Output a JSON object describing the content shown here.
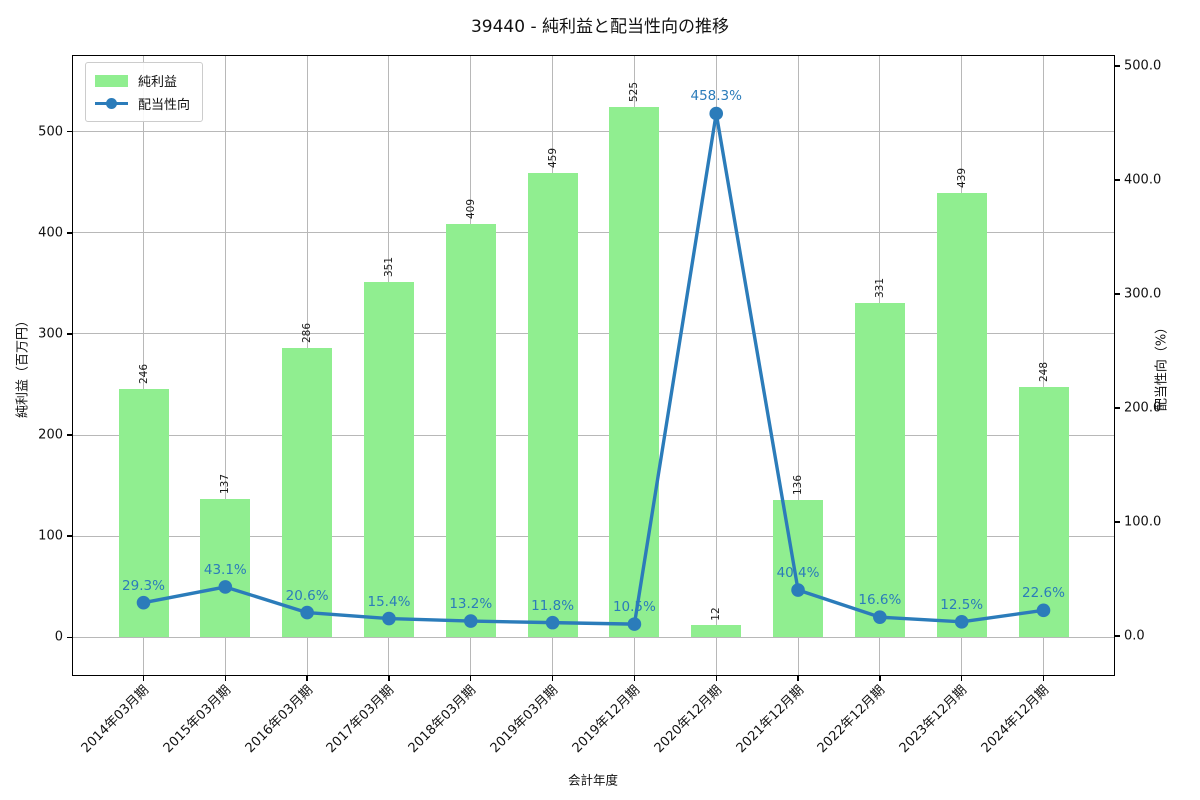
{
  "title": "39440 - 純利益と配当性向の推移",
  "legend": {
    "position": "upper left",
    "items": [
      {
        "label": "純利益",
        "swatch": "green-bar"
      },
      {
        "label": "配当性向",
        "swatch": "blue-line-marker"
      }
    ]
  },
  "axes": {
    "x_title": "会計年度",
    "y_left_title": "純利益（百万円）",
    "y_right_title": "配当性向（%）"
  },
  "colors": {
    "bar_fill": "#90ee90",
    "line": "#2b7cba",
    "point_label": "#2b7cba",
    "grid": "#b8b8b8",
    "spine": "#000000",
    "bar_label": "#1a1a1a"
  },
  "chart_data": {
    "type": "bar+line",
    "title": "39440 - 純利益と配当性向の推移",
    "xlabel": "会計年度",
    "ylabel_left": "純利益（百万円）",
    "ylabel_right": "配当性向（%）",
    "grid": true,
    "legend_position": "upper left",
    "categories": [
      "2014年03月期",
      "2015年03月期",
      "2016年03月期",
      "2017年03月期",
      "2018年03月期",
      "2019年03月期",
      "2019年12月期",
      "2020年12月期",
      "2021年12月期",
      "2022年12月期",
      "2023年12月期",
      "2024年12月期"
    ],
    "series": [
      {
        "name": "純利益",
        "type": "bar",
        "axis": "left",
        "unit": "百万円",
        "values": [
          246,
          137,
          286,
          351,
          409,
          459,
          525,
          12,
          136,
          331,
          439,
          248
        ],
        "bar_labels": [
          "246",
          "137",
          "286",
          "351",
          "409",
          "459",
          "525",
          "12",
          "136",
          "331",
          "439",
          "248"
        ]
      },
      {
        "name": "配当性向",
        "type": "line",
        "axis": "right",
        "unit": "%",
        "values": [
          29.3,
          43.1,
          20.6,
          15.4,
          13.2,
          11.8,
          10.5,
          458.3,
          40.4,
          16.6,
          12.5,
          22.6
        ],
        "point_labels": [
          "29.3%",
          "43.1%",
          "20.6%",
          "15.4%",
          "13.2%",
          "11.8%",
          "10.5%",
          "458.3%",
          "40.4%",
          "16.6%",
          "12.5%",
          "22.6%"
        ]
      }
    ],
    "left_axis": {
      "ticks": [
        "0",
        "100",
        "200",
        "300",
        "400",
        "500"
      ],
      "tick_values": [
        0,
        100,
        200,
        300,
        400,
        500
      ],
      "ylim": [
        -38.4,
        576
      ]
    },
    "right_axis": {
      "ticks": [
        "0.0",
        "100.0",
        "200.0",
        "300.0",
        "400.0",
        "500.0"
      ],
      "tick_values": [
        0,
        100,
        200,
        300,
        400,
        500
      ],
      "ylim": [
        -35,
        509.6
      ]
    }
  }
}
